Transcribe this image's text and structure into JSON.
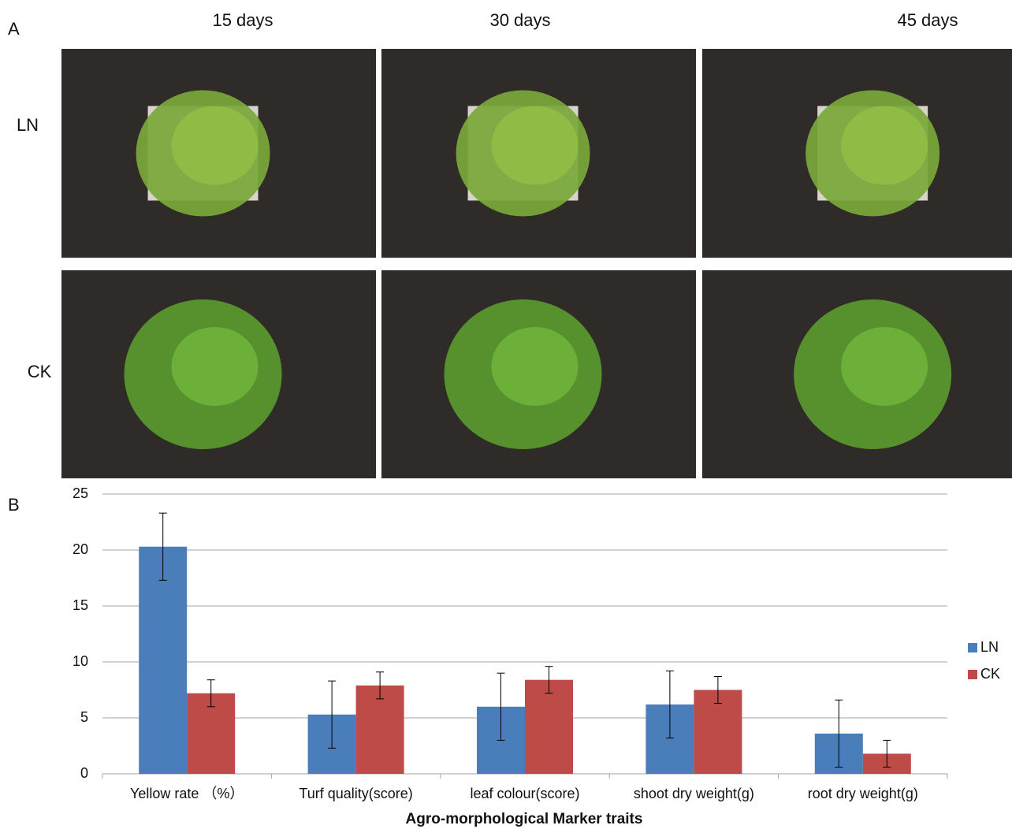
{
  "panel_a": {
    "label": "A",
    "columns": [
      "15 days",
      "30 days",
      "45 days"
    ],
    "rows": [
      "LN",
      "CK"
    ]
  },
  "panel_b_label": "B",
  "chart_data": {
    "type": "bar",
    "xlabel": "Agro-morphological Marker traits",
    "categories": [
      "Yellow rate （%）",
      "Turf quality(score)",
      "leaf colour(score)",
      "shoot dry weight(g)",
      "root dry weight(g)"
    ],
    "series": [
      {
        "name": "LN",
        "color": "#4a7ebb",
        "values": [
          20.3,
          5.3,
          6.0,
          6.2,
          3.6
        ],
        "errors": [
          3.0,
          3.0,
          3.0,
          3.0,
          3.0
        ]
      },
      {
        "name": "CK",
        "color": "#be4b48",
        "values": [
          7.2,
          7.9,
          8.4,
          7.5,
          1.8
        ],
        "errors": [
          1.2,
          1.2,
          1.2,
          1.2,
          1.2
        ]
      }
    ],
    "ylim": [
      0,
      25
    ],
    "yticks": [
      0,
      5,
      10,
      15,
      20,
      25
    ],
    "grid": true,
    "legend": "right"
  }
}
